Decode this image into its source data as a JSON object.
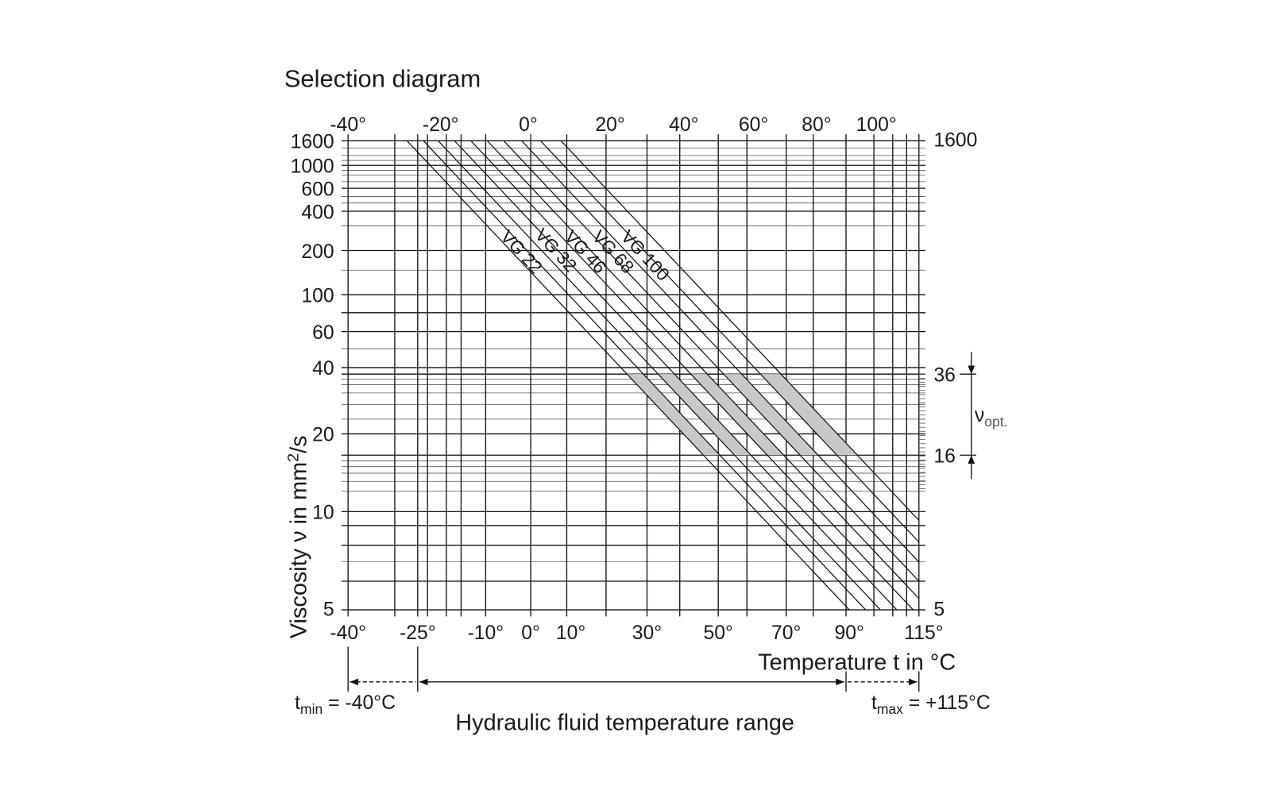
{
  "title": "Selection diagram",
  "top_ticks": [
    "-40°",
    "-20°",
    "0°",
    "20°",
    "40°",
    "60°",
    "80°",
    "100°"
  ],
  "left_ticks": [
    "1600",
    "1000",
    "600",
    "400",
    "200",
    "100",
    "60",
    "40",
    "20",
    "10",
    "5"
  ],
  "right_ticks": [
    "1600",
    "36",
    "16",
    "5"
  ],
  "bottom_ticks": [
    "-40°",
    "-25°",
    "-10°",
    "0°",
    "10°",
    "30°",
    "50°",
    "70°",
    "90°",
    "115°"
  ],
  "x_axis_label": "Temperature t in °C",
  "y_axis_label": {
    "text": "Viscosity ν in mm",
    "sup": "2",
    "rest": "/s"
  },
  "optimum_label": {
    "text": "ν",
    "sub": "opt."
  },
  "curves": [
    "VG 22",
    "VG 32",
    "VG 46",
    "VG 68",
    "VG 100"
  ],
  "t_min": {
    "text": "t",
    "sub": "min",
    "rest": " = -40°C"
  },
  "t_max": {
    "text": "t",
    "sub": "max",
    "rest": " = +115°C"
  },
  "range_label": "Hydraulic fluid temperature range"
}
